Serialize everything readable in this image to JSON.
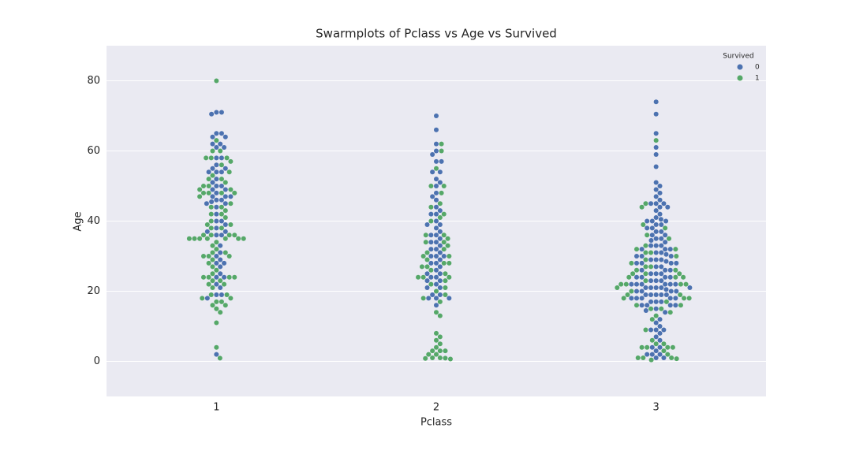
{
  "chart_data": {
    "type": "swarm",
    "title": "Swarmplots of Pclass vs Age vs Survived",
    "x_label": "Pclass",
    "y_label": "Age",
    "legend_title": "Survived",
    "legend": "upper right",
    "grid": true,
    "categories": [
      "1",
      "2",
      "3"
    ],
    "ylim": [
      -10,
      90
    ],
    "yticks": [
      0,
      20,
      40,
      60,
      80
    ],
    "series": [
      {
        "name": "0",
        "color": "#4c72b0",
        "values": [
          [
            71,
            70.5,
            65,
            64,
            62,
            61,
            58,
            58,
            56,
            55,
            54,
            54,
            52,
            51,
            50,
            50,
            49,
            48,
            47,
            47,
            46,
            45,
            45,
            44,
            42,
            40,
            40,
            39,
            38,
            37,
            36,
            36,
            33,
            31,
            30,
            29,
            28,
            28,
            27,
            25,
            24,
            24,
            22,
            21,
            19,
            19,
            18,
            2,
            45.5,
            46,
            47,
            49,
            54,
            62,
            65,
            64,
            71,
            37,
            61,
            55
          ],
          [
            70,
            66,
            62,
            60,
            59,
            57,
            57,
            54,
            54,
            52,
            51,
            50,
            48,
            47,
            46,
            44,
            43,
            42,
            42,
            40,
            39,
            39,
            38,
            37,
            36,
            36,
            35,
            34,
            34,
            33,
            32,
            32,
            31,
            30,
            30,
            30,
            29,
            28,
            28,
            27,
            26,
            25,
            25,
            24,
            24,
            23,
            23,
            22,
            21,
            21,
            19,
            19,
            18,
            18,
            18,
            16
          ],
          [
            74,
            70.5,
            65,
            61,
            59,
            55.5,
            51,
            50,
            49,
            48,
            47,
            46,
            45,
            45,
            45,
            44,
            44,
            43,
            42,
            41,
            40.5,
            40,
            40,
            40,
            39,
            39,
            38,
            38,
            37,
            37,
            36,
            36,
            35,
            35,
            34.5,
            34,
            33,
            33,
            33,
            32,
            32,
            32,
            31,
            31,
            30.5,
            30,
            30,
            30,
            29,
            29,
            29,
            28,
            28,
            28,
            28,
            28.5,
            27,
            27,
            26,
            26,
            26,
            25,
            25,
            25,
            24,
            24,
            24,
            24,
            23,
            23,
            23,
            22,
            22,
            22,
            22,
            22,
            22,
            21,
            21,
            21,
            21,
            21,
            20,
            20,
            20,
            20,
            20.5,
            19,
            19,
            19,
            19,
            19,
            18,
            18,
            18,
            18,
            18,
            17,
            17,
            17,
            16,
            16,
            16,
            16,
            15,
            14.5,
            14,
            12,
            11,
            10,
            9,
            9,
            9,
            8,
            7,
            6,
            4,
            4,
            3,
            2,
            2,
            2,
            1,
            1
          ]
        ]
      },
      {
        "name": "1",
        "color": "#55a868",
        "values": [
          [
            80,
            63,
            60,
            58,
            58,
            57,
            56,
            54,
            53,
            52,
            51,
            50,
            49,
            49,
            48,
            48,
            48,
            47,
            45,
            44,
            44,
            43,
            42,
            41,
            40,
            39,
            39,
            38,
            36,
            36,
            36,
            35,
            35,
            35,
            35,
            35,
            35,
            34,
            33,
            32,
            31,
            30,
            30,
            29,
            28,
            27,
            26,
            25,
            24,
            24,
            24,
            23,
            23,
            22,
            22,
            21,
            19,
            18,
            18,
            17,
            17,
            16,
            16,
            15,
            14,
            11,
            4,
            0.92,
            35,
            36,
            48,
            50,
            52,
            58,
            60,
            30,
            31,
            24,
            19,
            42,
            38
          ],
          [
            62,
            60,
            55,
            50,
            50,
            48,
            45,
            44,
            42,
            41,
            40,
            36,
            36,
            35,
            34,
            34,
            33,
            32,
            31,
            30,
            30,
            29,
            28,
            28,
            27,
            27,
            26,
            25,
            24,
            24,
            24,
            23,
            22,
            21,
            20,
            19,
            18,
            17,
            14,
            13,
            8,
            7,
            6,
            5,
            4,
            3,
            3,
            2,
            1,
            1,
            0.83,
            0.67,
            0.92,
            2,
            3
          ],
          [
            63,
            45,
            44,
            39,
            38,
            36,
            35,
            33,
            32,
            32,
            31,
            30,
            29,
            28,
            27,
            27,
            26,
            26,
            25,
            25,
            24,
            24,
            24,
            23,
            22,
            22,
            22,
            22,
            21,
            20,
            19,
            19,
            18,
            18,
            18,
            17,
            16,
            16,
            15,
            15,
            14,
            13,
            12,
            9,
            6,
            5,
            5,
            4,
            4,
            4,
            3,
            2,
            1,
            1,
            0.75,
            0.42,
            1,
            4,
            31,
            25
          ]
        ]
      }
    ]
  }
}
